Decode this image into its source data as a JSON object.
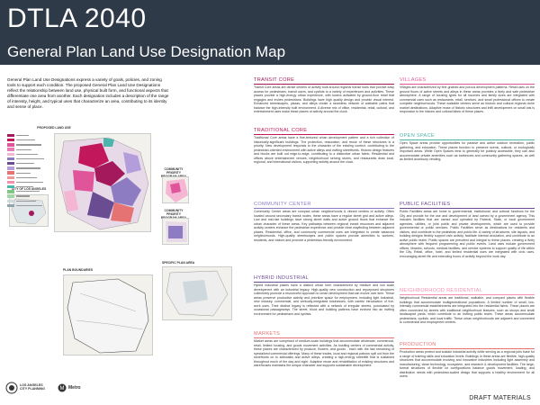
{
  "header": {
    "title": "DTLA 2040",
    "subtitle": "General Plan Land Use Designation Map"
  },
  "intro_text": "General Plan Land Use Designations express a variety of goals, policies, and zoning tools to support each condition. The proposed General Plan Land Use Designations reflect the relationship between land use, physical built form, and functional aspects that differentiate one area from another. Each designation includes a description of the range of intensity, height, and typical uses that characterize an area, contributing to its identity and sense of place.",
  "maps": {
    "main_title": "PROPOSED LAND USE",
    "chinatown_title": "COMMUNITY PRIORITY PROGRAM AREA CHINATOWN",
    "skidrow_title": "COMMUNITY PRIORITY PROGRAM AREA SKID ROW",
    "little_tokyo_title": "CITY OF LOS ANGELES",
    "plan_area_title": "SPECIFIC PLAN AREA",
    "plan_boundaries_title": "PLAN BOUNDARIES"
  },
  "legend": {
    "colors": [
      "#a3195b",
      "#c2185b",
      "#e0559a",
      "#e87bb5",
      "#f4b6d2",
      "#8e7cc3",
      "#6a4c93",
      "#b39ddb",
      "#e57373",
      "#ef9a9a",
      "#f48fb1",
      "#4db6ac",
      "#81c784",
      "#a5d6a7",
      "#cfd8dc",
      "#90a4ae"
    ]
  },
  "blocks": {
    "transit_core": {
      "heading": "TRANSIT CORE",
      "color": "#a3195b",
      "body": "Transit Core areas are dense centers of activity built around regional transit hubs that provide easy access for pedestrians, transit users, and cyclists to a variety of experiences and activities. These places provide a high-energy urban experience, with towers activated by ground-floor retail that engages and invites pedestrians. Buildings have high quality design and provide visual interest. Enhanced streetscapes, plazas, and alleys create a seamless network of walkable paths that balance the high-intensity built environment. A diverse mix of office, residential, retail, cultural, and entertainment uses make these places of activity around the clock."
    },
    "traditional_core": {
      "heading": "TRADITIONAL CORE",
      "color": "#c2185b",
      "body": "Traditional Core areas have a fine-textured urban development pattern and a rich collection of historically-significant buildings. The protection, restoration, and reuse of these structures is a priority. New development responds to the character of the existing context, contributing to the pedestrian-oriented environment with active alleys and inviting streetfronts. Historic design features and blocks are built out edge-to-edge, contributing to a distinctive urban fabric. Residential and offices above entertainment venues, neighborhood serving stores, and restaurants draw local, regional, and international visitors, supporting activity around the clock."
    },
    "community_center": {
      "heading": "COMMUNITY CENTER",
      "color": "#8e7cc3",
      "body": "Community Center areas are compact urban neighborhoods & vibrant centers of activity. Often located around secondary transit nodes, these areas have a regular street grid and active alleys. Low and mid-rise buildings have strong street walls and active ground floors that enhance the urban character of these areas. Key pathways between regional transit resources and adjacent activity centers enhance the pedestrian experience and provide clear wayfinding between adjacent places. Residential, office, and community commercial uses are integrated to create balanced neighborhoods. High-quality streetscapes and public spaces provide amenities to workers, residents, and visitors and promote a pedestrian-friendly environment."
    },
    "hybrid_industrial": {
      "heading": "HYBRID INDUSTRIAL",
      "color": "#6a4c93",
      "body": "Hybrid Industrial places have a distinct urban form characterized by medium and low scale development with an industrial legacy. High-quality new construction and repurposed structures collectively promote a resourceful approach to urban development that can evolve over time. These areas preserve productive activity and prioritize space for employment, including light industrial, new industry, commercial, and vertically-integrated businesses, with careful introduction of live-work uses. Their distinct legacy is reflected with a network of irregular streets, punctuated by occasional passageways. The street, block and building patterns have evolved into an inviting environment for pedestrians and cyclists."
    },
    "markets": {
      "heading": "MARKETS",
      "color": "#e57373",
      "body": "Market areas are comprised of medium-scale buildings that accommodate wholesale, commercial, retail, limited housing, and goods movement activities. As bustling centers of commercial activity, these places are characterized by produce, flowers, and goods - each with the last remaining of specialized commercial offerings. Many of these trades, local and regional patrons spill out from the storefronts on to sidewalks and active alleys, creating a high-energy streetlife that is sustained throughout much of the day and night. Adaptive reuse and rehabilitation of existing structures and warehouses maintains the unique character and supports sustainable development."
    },
    "villages": {
      "heading": "VILLAGES",
      "color": "#e0559a",
      "body": "Villages are characterized by fine-grained and porous development patterns. Retail uses on the ground floors of active streets and alleys in these areas provides a lively and safe pedestrian atmosphere. A range of housing types for all incomes and family sizes are integrated with commercial uses such as restaurants, retail, services, and small professional offices to create complete neighborhoods. These walkable centers serve as historic and cultural regional niche market destinations. Adaptive reuse of historic structures and infill development on small lots is responsive to the historic and cultural fabric of these places."
    },
    "open_space": {
      "heading": "OPEN SPACE",
      "color": "#4db6ac",
      "body": "Open Space areas provide opportunities for passive and active outdoor recreation, public gathering, and education. These places function to preserve scenic, cultural, or ecologically important areas. While Open Spaces tend to generally be publicly accessible, they can also accommodate private amenities such as barbecues and community gathering spaces, as well as limited accessory vending."
    },
    "public_facilities": {
      "heading": "PUBLIC FACILITIES",
      "color": "#6a4c93",
      "body": "Public Facilities areas are home to governmental, institutional, and cultural functions for the City and provide for the use and development of land owned by a government agency. This includes facilities that are owned and operated by Federal, State, or local government agencies, utilities, or joint public and private developments, which are used to provide governmental or public services. Public Facilities serve as destinations for residents and visitors, and contribute to the pedestrian and public life. A variety of structures, site layouts, and building designs flexibly support civic activity, facilitate internal circulation, and contribute to an active public realm. Public spaces are prevalent and integral to these places, creating a lively atmosphere with frequent programming and public events. Land uses include government offices, libraries, schools, medical facilities, and service systems to support quality of life within the City. Retail, office, hotel, and limited residential uses are integrated with civic uses, encouraging street life and extending hours of activity beyond the work day."
    },
    "neighborhood_residential": {
      "heading": "NEIGHBORHOOD RESIDENTIAL",
      "color": "#f48fb1",
      "body": "Neighborhood Residential areas are traditional, walkable, and compact places with flexible buildings that accommodate multigenerational populations. A limited number of small, low-intensity commercial establishments are integrated into the residential fabric. These places are often connected by streets with traditional neighborhood features, such as stoops and small landscaped yards, which contribute to an inviting public realm. These areas accommodate pedestrians, cyclists, and local traffic. These urban neighborhoods are adjacent and connected to commercial and employment centers."
    },
    "production": {
      "heading": "PRODUCTION",
      "color": "#e57373",
      "body": "Production areas protect and sustain industrial activity while serving as a regional jobs base for a range of training skills and education levels. Buildings in these areas are flexible, high-quality structures that accommodate evolving and innovative industries including light assembly and manufacturing, clean technology, ecosystem, and research & development facilities. The large-format structures of flexible lot configurations balance goods movement, loading, and distribution needs with pedestrian-scaled design that supports a healthy environment for all users."
    }
  },
  "footer": {
    "logo_text": "LOS ANGELES CITY PLANNING",
    "partner_text": "Metro",
    "draft_label": "DRAFT MATERIALS"
  }
}
